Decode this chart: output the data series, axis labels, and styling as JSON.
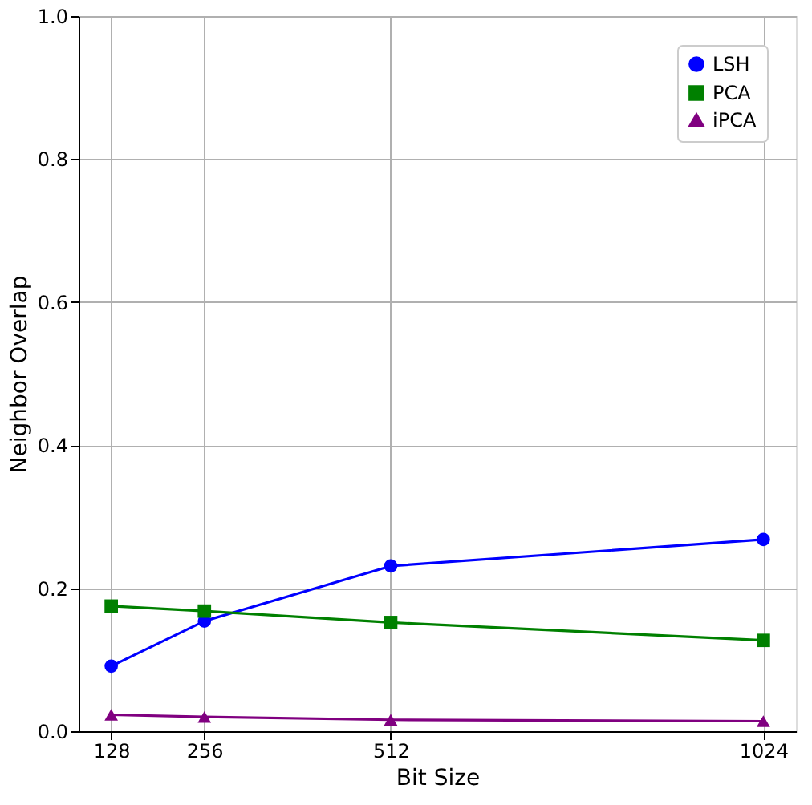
{
  "chart_data": {
    "type": "line",
    "xlabel": "Bit Size",
    "ylabel": "Neighbor Overlap",
    "x": [
      128,
      256,
      512,
      1024
    ],
    "series": [
      {
        "name": "LSH",
        "color": "#0000ff",
        "marker": "circle",
        "values": [
          0.091,
          0.154,
          0.231,
          0.268
        ]
      },
      {
        "name": "PCA",
        "color": "#008000",
        "marker": "square",
        "values": [
          0.175,
          0.168,
          0.152,
          0.127
        ]
      },
      {
        "name": "iPCA",
        "color": "#800080",
        "marker": "triangle",
        "values": [
          0.023,
          0.02,
          0.016,
          0.014
        ]
      }
    ],
    "xlim": [
      83.2,
      1068.8
    ],
    "xticks": [
      128,
      256,
      512,
      1024
    ],
    "ylim": [
      0,
      1.0
    ],
    "yticks": [
      {
        "value": 0,
        "label": "0.0"
      },
      0.2,
      0.4,
      0.6,
      0.8,
      {
        "value": 1.0,
        "label": "1.0"
      }
    ],
    "grid": true,
    "legend": "top right",
    "line_style": "solid"
  }
}
